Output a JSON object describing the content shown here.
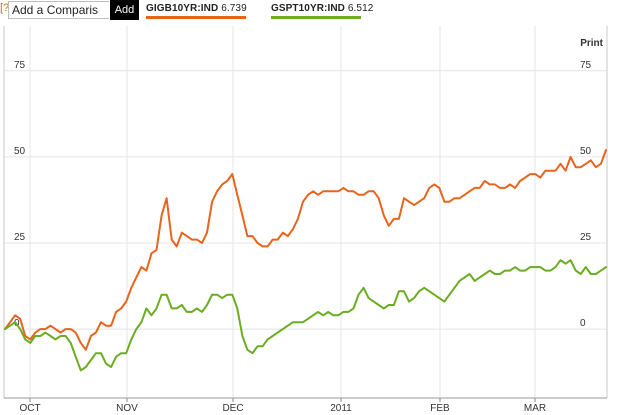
{
  "toolbar": {
    "help_label": "[?]",
    "compare_value": "Add a Comparis",
    "add_label": "Add"
  },
  "legend": [
    {
      "ticker": "GIGB10YR:IND",
      "value": "6.739",
      "color": "#e8641c"
    },
    {
      "ticker": "GSPT10YR:IND",
      "value": "6.512",
      "color": "#6aad22"
    }
  ],
  "print_label": "Print",
  "chart_data": {
    "type": "line",
    "title": "",
    "xlabel": "",
    "ylabel": "",
    "x_ticks": [
      "OCT",
      "NOV",
      "DEC",
      "2011",
      "FEB",
      "MAR"
    ],
    "y_ticks": [
      0,
      25,
      50,
      75
    ],
    "ylim": [
      -20,
      88
    ],
    "grid": true,
    "legend_position": "top-left",
    "series": [
      {
        "name": "GIGB10YR:IND",
        "color": "#e8641c",
        "values": [
          0,
          2,
          4,
          3,
          -2,
          -3,
          -1,
          0,
          0,
          1,
          0,
          -1,
          0,
          0,
          -1,
          -4,
          -6,
          -2,
          -1,
          2,
          1,
          1,
          5,
          6,
          8,
          12,
          15,
          18,
          17,
          22,
          23,
          33,
          38,
          26,
          24,
          28,
          27,
          26,
          26,
          25,
          28,
          37,
          40,
          42,
          43,
          45,
          39,
          33,
          27,
          27,
          25,
          24,
          24,
          26,
          26,
          28,
          27,
          29,
          32,
          37,
          39,
          40,
          39,
          40,
          40,
          40,
          40,
          41,
          40,
          40,
          39,
          39,
          40,
          40,
          38,
          33,
          30,
          32,
          32,
          38,
          37,
          36,
          37,
          38,
          41,
          42,
          41,
          37,
          37,
          38,
          38,
          39,
          40,
          41,
          41,
          43,
          42,
          42,
          41,
          41,
          42,
          41,
          43,
          44,
          45,
          45,
          44,
          46,
          46,
          46,
          48,
          46,
          50,
          47,
          47,
          48,
          49,
          47,
          48,
          52
        ]
      },
      {
        "name": "GSPT10YR:IND",
        "color": "#6aad22",
        "values": [
          0,
          1,
          2,
          0,
          -3,
          -4,
          -2,
          -2,
          -1,
          -2,
          -3,
          -2,
          -2,
          -4,
          -8,
          -12,
          -11,
          -9,
          -7,
          -7,
          -10,
          -11,
          -8,
          -7,
          -7,
          -3,
          0,
          2,
          6,
          4,
          6,
          10,
          10,
          6,
          6,
          7,
          5,
          5,
          6,
          5,
          7,
          10,
          10,
          9,
          10,
          10,
          6,
          -2,
          -6,
          -7,
          -5,
          -5,
          -3,
          -2,
          -1,
          0,
          1,
          2,
          2,
          2,
          3,
          4,
          5,
          4,
          5,
          4,
          4,
          5,
          5,
          6,
          10,
          12,
          9,
          8,
          7,
          6,
          7,
          7,
          11,
          11,
          8,
          9,
          11,
          12,
          11,
          10,
          9,
          8,
          10,
          12,
          14,
          15,
          16,
          14,
          15,
          16,
          17,
          16,
          16,
          17,
          17,
          18,
          17,
          17,
          18,
          18,
          18,
          17,
          17,
          18,
          20,
          19,
          20,
          17,
          16,
          18,
          16,
          16,
          17,
          18
        ]
      }
    ]
  }
}
